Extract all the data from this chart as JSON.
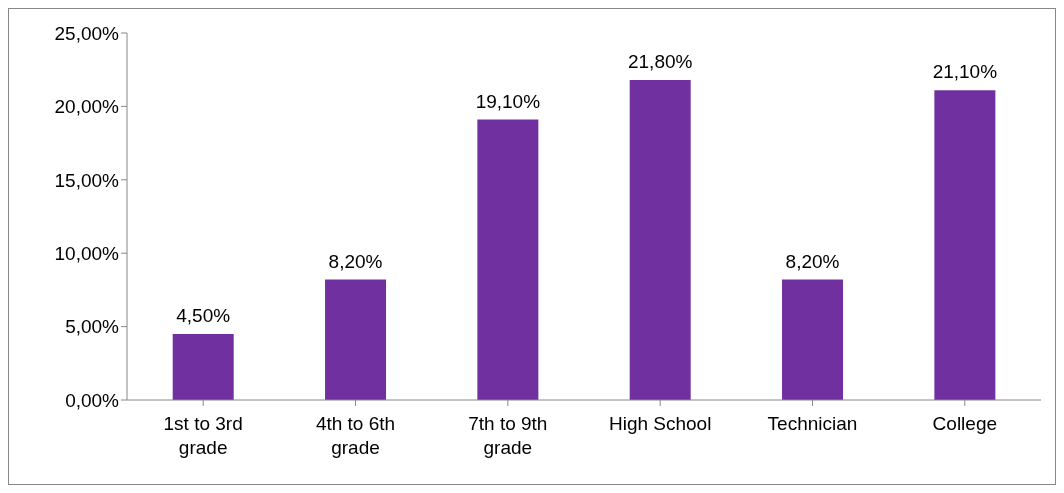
{
  "chart_data": {
    "type": "bar",
    "categories": [
      "1st to 3rd grade",
      "4th to 6th grade",
      "7th to 9th grade",
      "High School",
      "Technician",
      "College"
    ],
    "values": [
      4.5,
      8.2,
      19.1,
      21.8,
      8.2,
      21.1
    ],
    "value_labels": [
      "4,50%",
      "8,20%",
      "19,10%",
      "21,80%",
      "8,20%",
      "21,10%"
    ],
    "color": "#7030a0",
    "ylim": [
      0,
      25
    ],
    "yticks": [
      {
        "value": 0,
        "label": "0,00%"
      },
      {
        "value": 5,
        "label": "5,00%"
      },
      {
        "value": 10,
        "label": "10,00%"
      },
      {
        "value": 15,
        "label": "15,00%"
      },
      {
        "value": 20,
        "label": "20,00%"
      },
      {
        "value": 25,
        "label": "25,00%"
      }
    ],
    "grid": false,
    "legend": false
  }
}
